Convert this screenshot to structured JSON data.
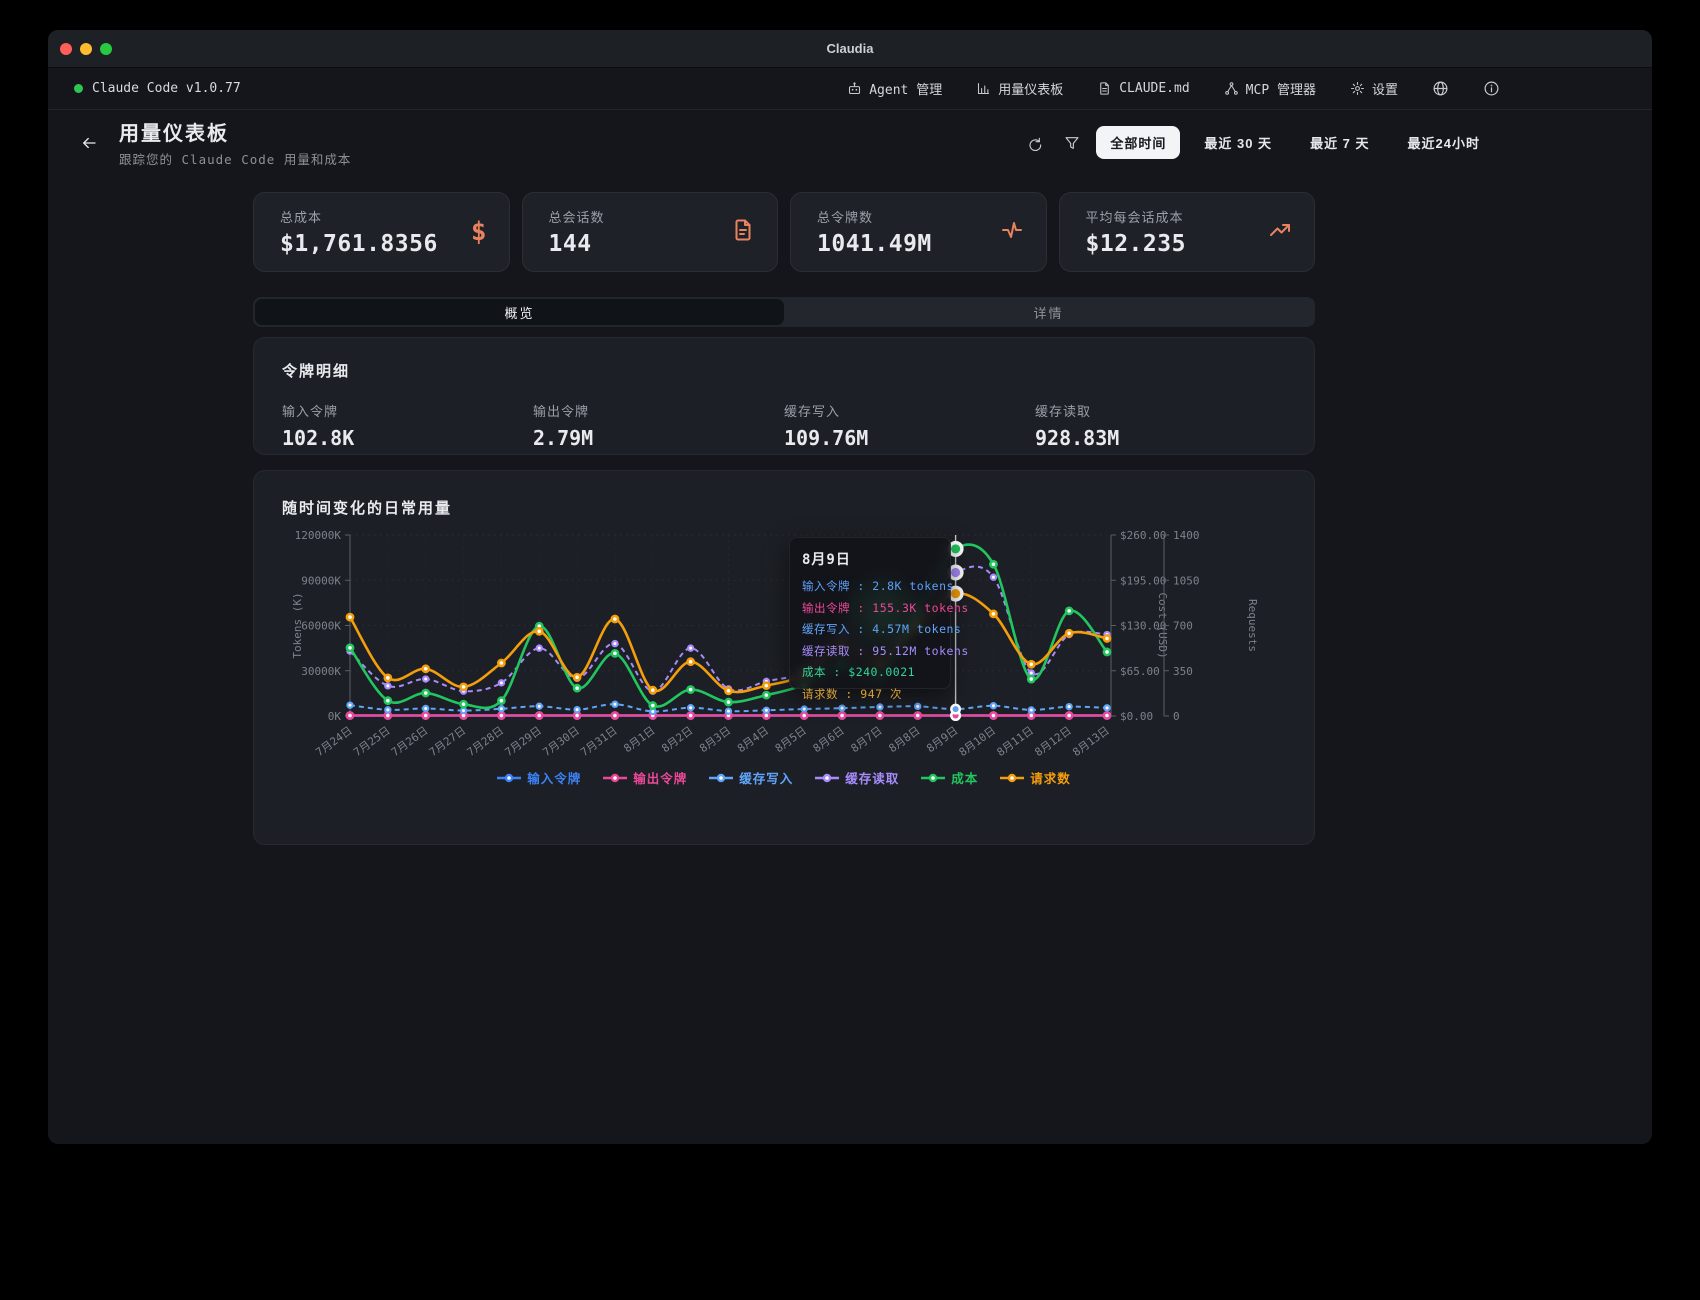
{
  "window": {
    "title": "Claudia"
  },
  "menubar": {
    "status_label": "Claude Code v1.0.77",
    "items": [
      {
        "label": "Agent 管理",
        "icon": "robot-icon"
      },
      {
        "label": "用量仪表板",
        "icon": "bar-chart-icon"
      },
      {
        "label": "CLAUDE.md",
        "icon": "file-icon"
      },
      {
        "label": "MCP 管理器",
        "icon": "network-icon"
      },
      {
        "label": "设置",
        "icon": "gear-icon"
      }
    ]
  },
  "header": {
    "title": "用量仪表板",
    "subtitle": "跟踪您的 Claude Code 用量和成本",
    "time_filters": [
      {
        "label": "全部时间",
        "active": true
      },
      {
        "label": "最近 30 天",
        "active": false
      },
      {
        "label": "最近 7 天",
        "active": false
      },
      {
        "label": "最近24小时",
        "active": false
      }
    ]
  },
  "stats": [
    {
      "label": "总成本",
      "value": "$1,761.8356",
      "icon": "dollar-icon"
    },
    {
      "label": "总会话数",
      "value": "144",
      "icon": "file-text-icon"
    },
    {
      "label": "总令牌数",
      "value": "1041.49M",
      "icon": "activity-icon"
    },
    {
      "label": "平均每会话成本",
      "value": "$12.235",
      "icon": "trending-up-icon"
    }
  ],
  "tabs": [
    {
      "label": "概览",
      "active": true
    },
    {
      "label": "详情",
      "active": false
    }
  ],
  "token_breakdown": {
    "title": "令牌明细",
    "items": [
      {
        "label": "输入令牌",
        "value": "102.8K"
      },
      {
        "label": "输出令牌",
        "value": "2.79M"
      },
      {
        "label": "缓存写入",
        "value": "109.76M"
      },
      {
        "label": "缓存读取",
        "value": "928.83M"
      }
    ]
  },
  "chart_data": {
    "type": "line",
    "title": "随时间变化的日常用量",
    "x": [
      "7月24日",
      "7月25日",
      "7月26日",
      "7月27日",
      "7月28日",
      "7月29日",
      "7月30日",
      "7月31日",
      "8月1日",
      "8月2日",
      "8月3日",
      "8月4日",
      "8月5日",
      "8月6日",
      "8月7日",
      "8月8日",
      "8月9日",
      "8月10日",
      "8月11日",
      "8月12日",
      "8月13日"
    ],
    "axes": {
      "left": {
        "label": "Tokens (K)",
        "max": 120000,
        "ticks": [
          "0K",
          "30000K",
          "60000K",
          "90000K",
          "120000K"
        ]
      },
      "right_cost": {
        "label": "Cost (USD)",
        "max": 260,
        "ticks": [
          "$0.00",
          "$65.00",
          "$130.00",
          "$195.00",
          "$260.00"
        ]
      },
      "right_requests": {
        "label": "Requests",
        "max": 1400,
        "ticks": [
          "0",
          "350",
          "700",
          "1050",
          "1400"
        ]
      }
    },
    "legend_position": "bottom",
    "grid": true,
    "series": [
      {
        "name": "输入令牌",
        "color": "#3b82f6",
        "axis": "tokens",
        "unit": "K",
        "dashed": false,
        "values": [
          6.2,
          3.1,
          4.0,
          2.5,
          3.8,
          7.5,
          3.0,
          8.2,
          2.2,
          4.5,
          2.4,
          3.0,
          3.6,
          4.2,
          5.0,
          6.8,
          2.8,
          7.4,
          3.5,
          9.2,
          7.9
        ]
      },
      {
        "name": "输出令牌",
        "color": "#ec4899",
        "axis": "tokens",
        "unit": "K",
        "dashed": false,
        "values": [
          180,
          95,
          110,
          75,
          105,
          175,
          90,
          190,
          60,
          120,
          65,
          80,
          95,
          110,
          130,
          170,
          155.3,
          185,
          90,
          170,
          160
        ]
      },
      {
        "name": "缓存写入",
        "color": "#60a5fa",
        "axis": "tokens",
        "unit": "M",
        "dashed": true,
        "values": [
          7.2,
          4.1,
          5.0,
          3.6,
          4.8,
          6.5,
          4.2,
          7.8,
          3.0,
          5.5,
          3.2,
          3.8,
          4.6,
          5.2,
          6.0,
          6.4,
          4.57,
          6.8,
          4.0,
          6.2,
          5.4
        ]
      },
      {
        "name": "缓存读取",
        "color": "#a78bfa",
        "axis": "tokens",
        "unit": "M",
        "dashed": true,
        "values": [
          43,
          20,
          24.5,
          16.5,
          22,
          45,
          25,
          48,
          16.5,
          45,
          18,
          23,
          30,
          55,
          36,
          70,
          95.12,
          92,
          28.5,
          54,
          54
        ]
      },
      {
        "name": "成本",
        "color": "#22c55e",
        "axis": "cost",
        "unit": "USD",
        "dashed": false,
        "values": [
          98,
          22,
          33,
          17,
          22,
          129,
          40,
          90,
          15,
          38,
          20,
          30,
          45,
          75,
          60,
          150,
          240.0021,
          218,
          53,
          151,
          92
        ]
      },
      {
        "name": "请求数",
        "color": "#f59e0b",
        "axis": "requests",
        "unit": "count",
        "dashed": false,
        "values": [
          765,
          295,
          365,
          225,
          410,
          655,
          300,
          750,
          200,
          420,
          195,
          235,
          320,
          545,
          420,
          700,
          947,
          790,
          400,
          640,
          600
        ]
      }
    ],
    "tooltip": {
      "date": "8月9日",
      "index": 16,
      "rows": [
        {
          "label": "输入令牌",
          "value": "2.8K tokens",
          "color": "#5e9ef8"
        },
        {
          "label": "输出令牌",
          "value": "155.3K tokens",
          "color": "#ec4899"
        },
        {
          "label": "缓存写入",
          "value": "4.57M tokens",
          "color": "#60a5fa"
        },
        {
          "label": "缓存读取",
          "value": "95.12M tokens",
          "color": "#a78bfa"
        },
        {
          "label": "成本",
          "value": "$240.0021",
          "color": "#34d399"
        },
        {
          "label": "请求数",
          "value": "947 次",
          "color": "#d9a036"
        }
      ]
    }
  }
}
